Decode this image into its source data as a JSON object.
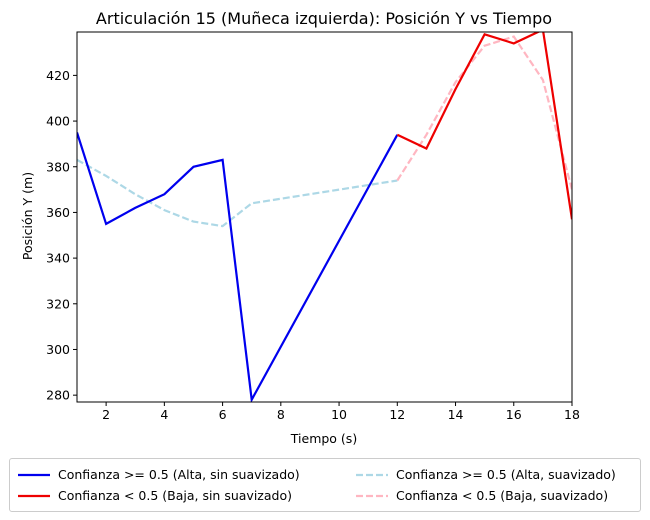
{
  "chart_data": {
    "type": "line",
    "title": "Articulación 15 (Muñeca izquierda): Posición Y vs Tiempo",
    "xlabel": "Tiempo (s)",
    "ylabel": "Posición Y (m)",
    "xlim": [
      1,
      18
    ],
    "ylim": [
      277,
      439
    ],
    "xticks": [
      2,
      4,
      6,
      8,
      10,
      12,
      14,
      16,
      18
    ],
    "yticks": [
      280,
      300,
      320,
      340,
      360,
      380,
      400,
      420
    ],
    "grid": false,
    "legend_position": "bottom, outside, 2 columns",
    "series": [
      {
        "name": "Confianza >= 0.5 (Alta, sin suavizado)",
        "color": "#0000ee",
        "style": "solid",
        "x": [
          1,
          2,
          3,
          4,
          5,
          6,
          7,
          12
        ],
        "y": [
          395,
          355,
          362,
          368,
          380,
          383,
          278,
          394
        ]
      },
      {
        "name": "Confianza < 0.5 (Baja, sin suavizado)",
        "color": "#ee0000",
        "style": "solid",
        "x": [
          12,
          13,
          14,
          15,
          16,
          17,
          18
        ],
        "y": [
          394,
          388,
          414,
          438,
          434,
          440,
          357
        ]
      },
      {
        "name": "Confianza >= 0.5 (Alta, suavizado)",
        "color": "#add8e6",
        "style": "dashed",
        "x": [
          1,
          2,
          3,
          4,
          5,
          6,
          7,
          12
        ],
        "y": [
          383,
          376,
          368,
          361,
          356,
          354,
          364,
          374
        ]
      },
      {
        "name": "Confianza < 0.5 (Baja, suavizado)",
        "color": "#ffb6c1",
        "style": "dashed",
        "x": [
          12,
          13,
          14,
          15,
          16,
          17,
          18
        ],
        "y": [
          374,
          394,
          417,
          433,
          437,
          418,
          370
        ]
      }
    ],
    "legend": {
      "items": [
        "Confianza >= 0.5 (Alta, sin suavizado)",
        "Confianza < 0.5 (Baja, sin suavizado)",
        "Confianza >= 0.5 (Alta, suavizado)",
        "Confianza < 0.5 (Baja, suavizado)"
      ]
    }
  }
}
